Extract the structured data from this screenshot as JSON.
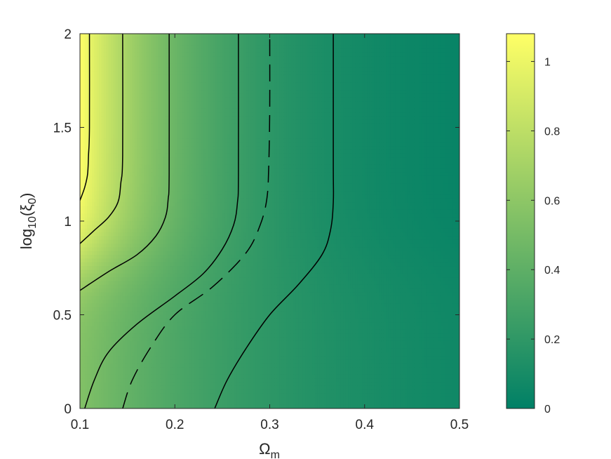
{
  "chart_data": {
    "type": "heatmap",
    "title": "",
    "xlabel": {
      "base": "Ω",
      "sub": "m"
    },
    "ylabel": {
      "pre": "log",
      "sub1": "10",
      "mid": "(ξ",
      "sub2": "0",
      "post": ")"
    },
    "xlim": [
      0.1,
      0.5
    ],
    "ylim": [
      0,
      2
    ],
    "xticks": [
      0.1,
      0.2,
      0.3,
      0.4,
      0.5
    ],
    "xtick_labels": [
      "0.1",
      "0.2",
      "0.3",
      "0.4",
      "0.5"
    ],
    "yticks": [
      0,
      0.5,
      1,
      1.5,
      2
    ],
    "ytick_labels": [
      "0",
      "0.5",
      "1",
      "1.5",
      "2"
    ],
    "colorbar": {
      "range": [
        0,
        1.08
      ],
      "ticks": [
        0,
        0.2,
        0.4,
        0.6,
        0.8,
        1
      ],
      "tick_labels": [
        "0",
        "0.2",
        "0.4",
        "0.6",
        "0.8",
        "1"
      ],
      "colormap": "summer",
      "colors": [
        "#008066",
        "#ffff66"
      ]
    },
    "contours": [
      {
        "style": "solid",
        "points": [
          [
            0.1,
            1.11
          ],
          [
            0.105,
            1.18
          ],
          [
            0.108,
            1.25
          ],
          [
            0.109,
            1.35
          ],
          [
            0.11,
            1.5
          ],
          [
            0.11,
            2.0
          ]
        ]
      },
      {
        "style": "solid",
        "points": [
          [
            0.1,
            0.88
          ],
          [
            0.115,
            0.95
          ],
          [
            0.13,
            1.02
          ],
          [
            0.14,
            1.1
          ],
          [
            0.143,
            1.2
          ],
          [
            0.145,
            1.35
          ],
          [
            0.145,
            2.0
          ]
        ]
      },
      {
        "style": "solid",
        "points": [
          [
            0.1,
            0.63
          ],
          [
            0.13,
            0.73
          ],
          [
            0.16,
            0.82
          ],
          [
            0.18,
            0.92
          ],
          [
            0.19,
            1.02
          ],
          [
            0.193,
            1.12
          ],
          [
            0.194,
            1.25
          ],
          [
            0.194,
            2.0
          ]
        ]
      },
      {
        "style": "solid",
        "points": [
          [
            0.105,
            0.0
          ],
          [
            0.115,
            0.15
          ],
          [
            0.13,
            0.3
          ],
          [
            0.16,
            0.45
          ],
          [
            0.2,
            0.6
          ],
          [
            0.23,
            0.72
          ],
          [
            0.25,
            0.85
          ],
          [
            0.262,
            0.98
          ],
          [
            0.266,
            1.1
          ],
          [
            0.267,
            1.25
          ],
          [
            0.267,
            2.0
          ]
        ]
      },
      {
        "style": "dashed",
        "points": [
          [
            0.145,
            0.0
          ],
          [
            0.155,
            0.15
          ],
          [
            0.175,
            0.33
          ],
          [
            0.2,
            0.5
          ],
          [
            0.24,
            0.65
          ],
          [
            0.275,
            0.83
          ],
          [
            0.29,
            0.98
          ],
          [
            0.297,
            1.12
          ],
          [
            0.299,
            1.3
          ],
          [
            0.3,
            1.6
          ],
          [
            0.3,
            2.0
          ]
        ]
      },
      {
        "style": "solid",
        "points": [
          [
            0.242,
            0.0
          ],
          [
            0.255,
            0.15
          ],
          [
            0.275,
            0.32
          ],
          [
            0.3,
            0.5
          ],
          [
            0.33,
            0.66
          ],
          [
            0.355,
            0.82
          ],
          [
            0.364,
            0.95
          ],
          [
            0.367,
            1.1
          ],
          [
            0.367,
            1.3
          ],
          [
            0.367,
            2.0
          ]
        ]
      }
    ]
  }
}
